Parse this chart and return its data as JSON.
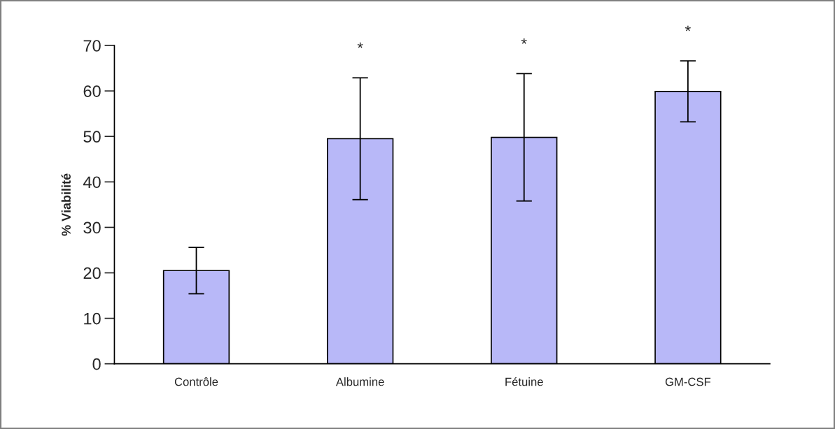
{
  "chart_data": {
    "type": "bar",
    "ylabel": "% Viabilité",
    "categories": [
      "Contrôle",
      "Albumine",
      "Fétuine",
      "GM-CSF"
    ],
    "values": [
      20.5,
      49.5,
      49.8,
      59.9
    ],
    "errors": [
      5.1,
      13.4,
      14,
      6.7
    ],
    "color": "#b8b8f8",
    "ylim": [
      0,
      70
    ],
    "yticks": [
      0,
      10,
      20,
      30,
      40,
      50,
      60,
      70
    ],
    "annotations": [
      "*",
      "*",
      "*"
    ]
  }
}
